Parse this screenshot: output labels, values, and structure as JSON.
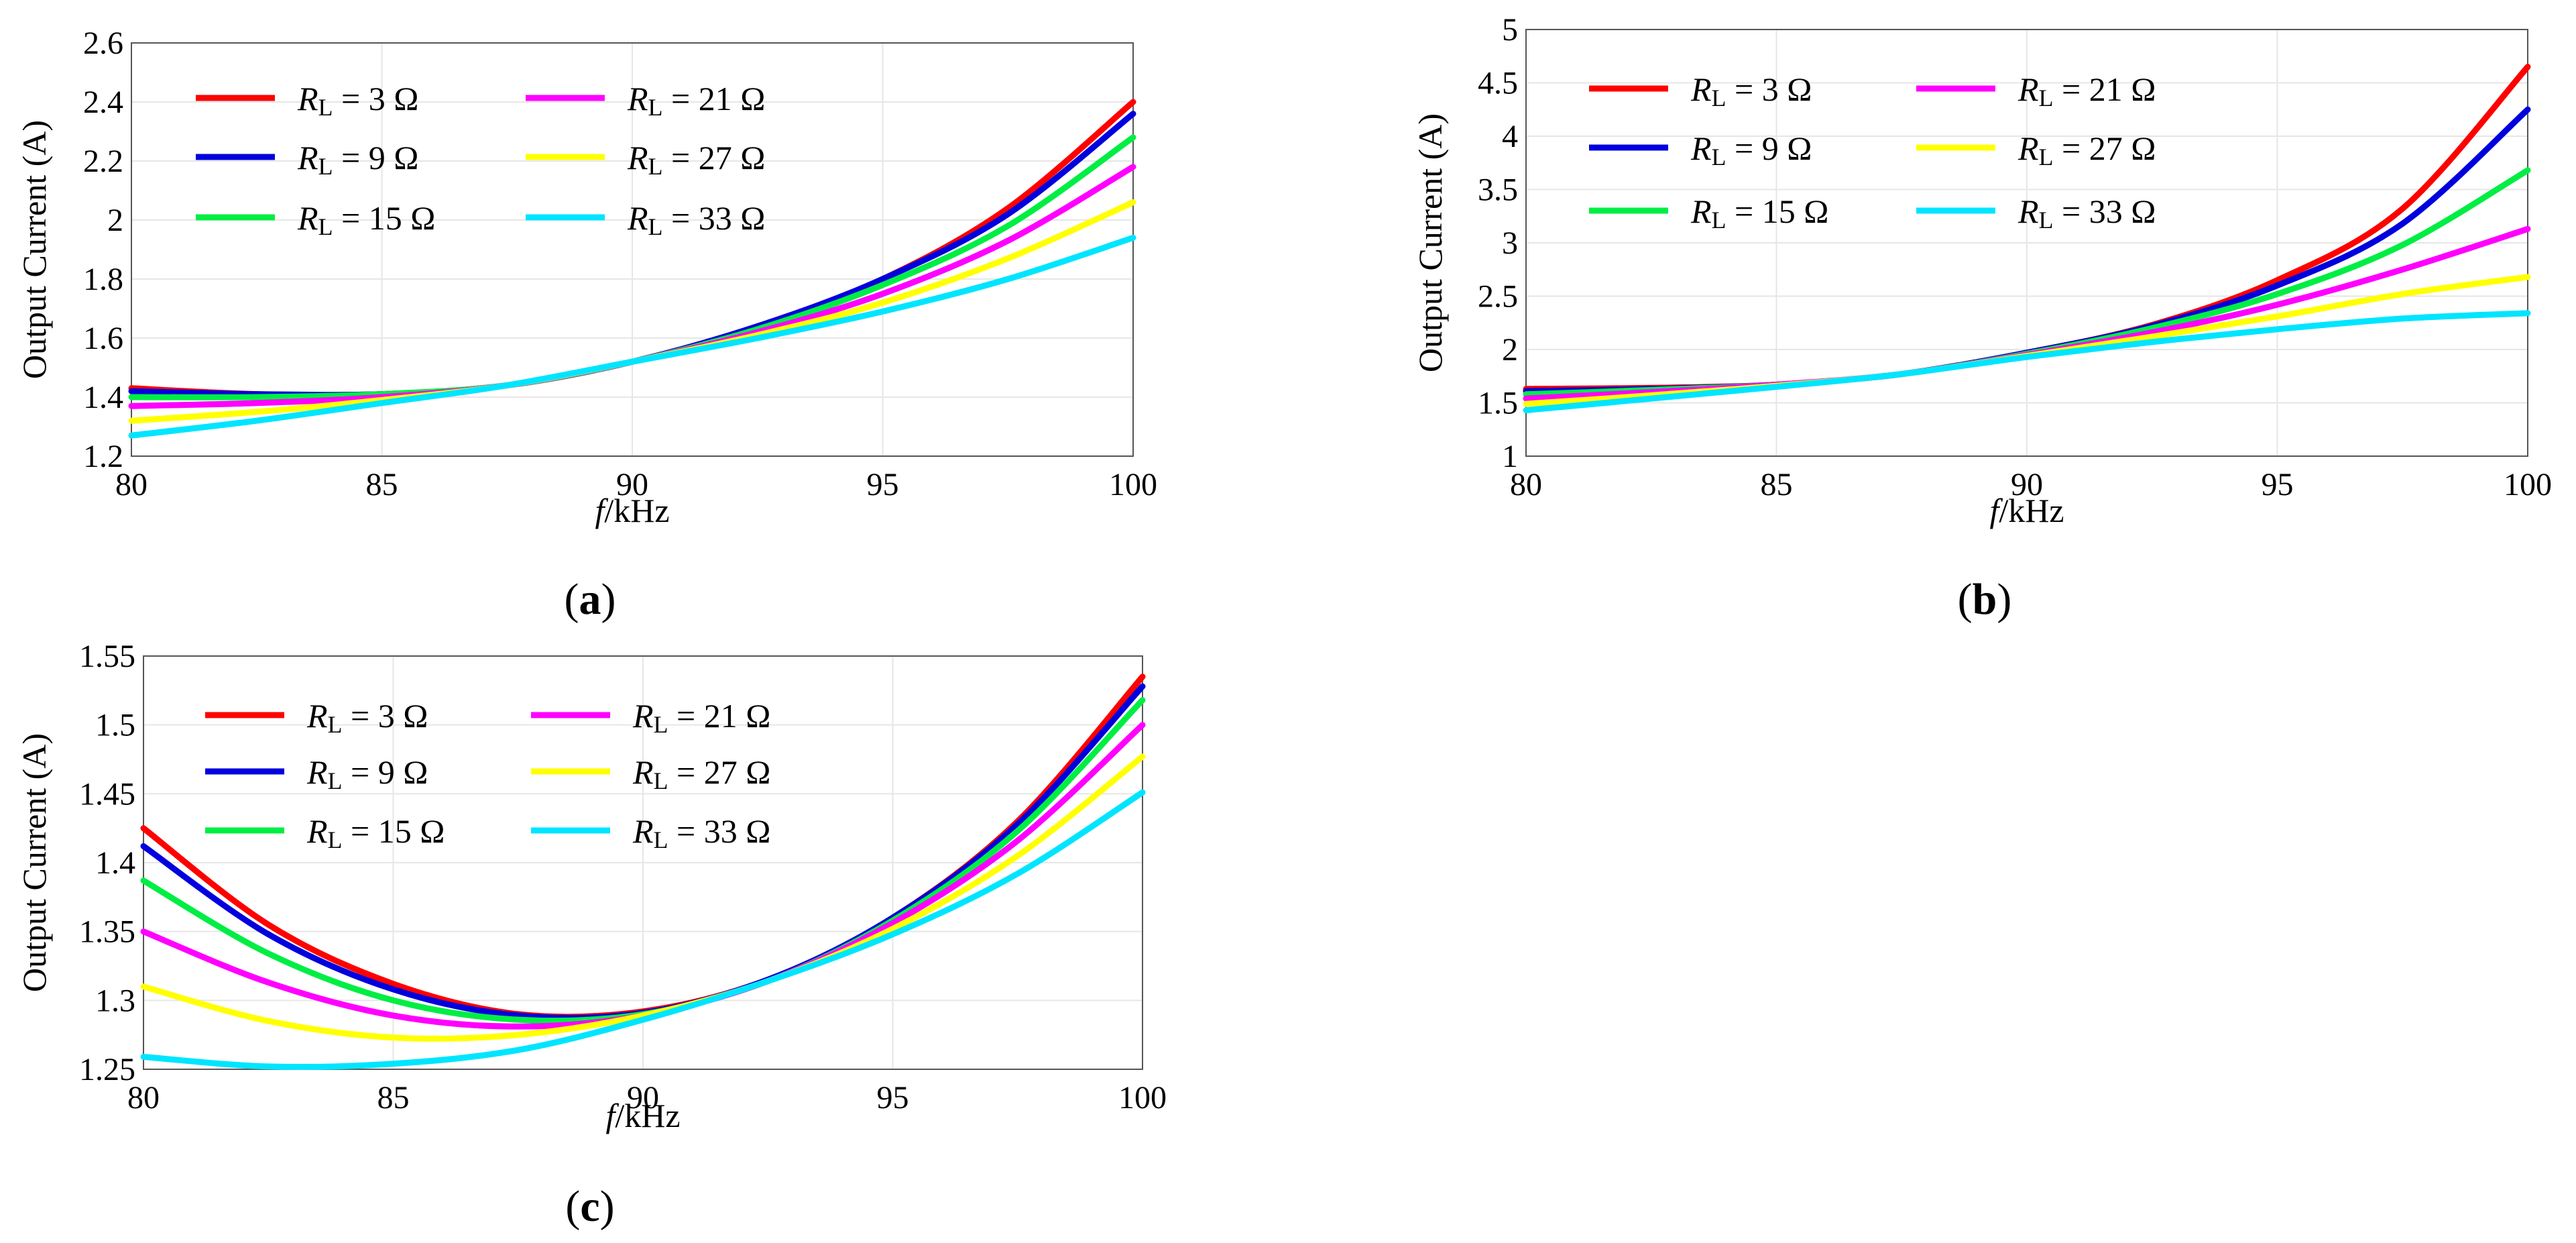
{
  "chart_data": [
    {
      "type": "line",
      "panel_label": "a",
      "xlabel_prefix": "f",
      "xlabel_suffix": "/kHz",
      "ylabel": "Output Current (A)",
      "xlim": [
        80,
        100
      ],
      "ylim": [
        1.2,
        2.6
      ],
      "xticks": [
        "80",
        "85",
        "90",
        "95",
        "100"
      ],
      "yticks": [
        "1.2",
        "1.4",
        "1.6",
        "1.8",
        "2",
        "2.2",
        "2.4",
        "2.6"
      ],
      "x": [
        80,
        82.5,
        85,
        87.5,
        90,
        92.5,
        95,
        97.5,
        100
      ],
      "series": [
        {
          "name_var": "R",
          "name_sub": "L",
          "name_val": " = 3 Ω",
          "color": "#ff0000",
          "values": [
            1.43,
            1.41,
            1.41,
            1.44,
            1.52,
            1.64,
            1.8,
            2.04,
            2.4
          ]
        },
        {
          "name_var": "R",
          "name_sub": "L",
          "name_val": " = 9 Ω",
          "color": "#0000dd",
          "values": [
            1.42,
            1.41,
            1.41,
            1.44,
            1.52,
            1.64,
            1.8,
            2.02,
            2.36
          ]
        },
        {
          "name_var": "R",
          "name_sub": "L",
          "name_val": " = 15 Ω",
          "color": "#00ee44",
          "values": [
            1.4,
            1.4,
            1.41,
            1.44,
            1.52,
            1.63,
            1.78,
            1.98,
            2.28
          ]
        },
        {
          "name_var": "R",
          "name_sub": "L",
          "name_val": " = 21 Ω",
          "color": "#ff00ff",
          "values": [
            1.37,
            1.38,
            1.4,
            1.44,
            1.52,
            1.62,
            1.75,
            1.93,
            2.18
          ]
        },
        {
          "name_var": "R",
          "name_sub": "L",
          "name_val": " = 27 Ω",
          "color": "#ffff00",
          "values": [
            1.32,
            1.35,
            1.39,
            1.44,
            1.52,
            1.61,
            1.72,
            1.87,
            2.06
          ]
        },
        {
          "name_var": "R",
          "name_sub": "L",
          "name_val": " = 33 Ω",
          "color": "#00e5ff",
          "values": [
            1.27,
            1.32,
            1.38,
            1.44,
            1.52,
            1.6,
            1.69,
            1.8,
            1.94
          ]
        }
      ]
    },
    {
      "type": "line",
      "panel_label": "b",
      "xlabel_prefix": "f",
      "xlabel_suffix": "/kHz",
      "ylabel": "Output Current (A)",
      "xlim": [
        80,
        100
      ],
      "ylim": [
        1,
        5
      ],
      "xticks": [
        "80",
        "85",
        "90",
        "95",
        "100"
      ],
      "yticks": [
        "1",
        "1.5",
        "2",
        "2.5",
        "3",
        "3.5",
        "4",
        "4.5",
        "5"
      ],
      "x": [
        80,
        82.5,
        85,
        87.5,
        90,
        92.5,
        95,
        97.5,
        100
      ],
      "series": [
        {
          "name_var": "R",
          "name_sub": "L",
          "name_val": " = 3 Ω",
          "color": "#ff0000",
          "values": [
            1.63,
            1.64,
            1.67,
            1.77,
            1.97,
            2.23,
            2.65,
            3.32,
            4.65
          ]
        },
        {
          "name_var": "R",
          "name_sub": "L",
          "name_val": " = 9 Ω",
          "color": "#0000dd",
          "values": [
            1.61,
            1.63,
            1.67,
            1.77,
            1.97,
            2.22,
            2.6,
            3.18,
            4.25
          ]
        },
        {
          "name_var": "R",
          "name_sub": "L",
          "name_val": " = 15 Ω",
          "color": "#00ee44",
          "values": [
            1.58,
            1.62,
            1.67,
            1.77,
            1.96,
            2.2,
            2.52,
            2.98,
            3.68
          ]
        },
        {
          "name_var": "R",
          "name_sub": "L",
          "name_val": " = 21 Ω",
          "color": "#ff00ff",
          "values": [
            1.54,
            1.6,
            1.67,
            1.77,
            1.95,
            2.16,
            2.42,
            2.75,
            3.13
          ]
        },
        {
          "name_var": "R",
          "name_sub": "L",
          "name_val": " = 27 Ω",
          "color": "#ffff00",
          "values": [
            1.49,
            1.57,
            1.66,
            1.77,
            1.94,
            2.12,
            2.31,
            2.52,
            2.68
          ]
        },
        {
          "name_var": "R",
          "name_sub": "L",
          "name_val": " = 33 Ω",
          "color": "#00e5ff",
          "values": [
            1.43,
            1.54,
            1.65,
            1.77,
            1.93,
            2.07,
            2.19,
            2.29,
            2.34
          ]
        }
      ]
    },
    {
      "type": "line",
      "panel_label": "c",
      "xlabel_prefix": "f",
      "xlabel_suffix": "/kHz",
      "ylabel": "Output Current (A)",
      "xlim": [
        80,
        100
      ],
      "ylim": [
        1.25,
        1.55
      ],
      "xticks": [
        "80",
        "85",
        "90",
        "95",
        "100"
      ],
      "yticks": [
        "1.25",
        "1.3",
        "1.35",
        "1.4",
        "1.45",
        "1.5",
        "1.55"
      ],
      "x": [
        80,
        82.5,
        85,
        87.5,
        90,
        92.5,
        95,
        97.5,
        100
      ],
      "series": [
        {
          "name_var": "R",
          "name_sub": "L",
          "name_val": " = 3 Ω",
          "color": "#ff0000",
          "values": [
            1.425,
            1.355,
            1.312,
            1.29,
            1.292,
            1.315,
            1.36,
            1.43,
            1.535
          ]
        },
        {
          "name_var": "R",
          "name_sub": "L",
          "name_val": " = 9 Ω",
          "color": "#0000dd",
          "values": [
            1.412,
            1.348,
            1.308,
            1.289,
            1.291,
            1.315,
            1.36,
            1.428,
            1.528
          ]
        },
        {
          "name_var": "R",
          "name_sub": "L",
          "name_val": " = 15 Ω",
          "color": "#00ee44",
          "values": [
            1.387,
            1.334,
            1.3,
            1.286,
            1.29,
            1.314,
            1.358,
            1.423,
            1.518
          ]
        },
        {
          "name_var": "R",
          "name_sub": "L",
          "name_val": " = 21 Ω",
          "color": "#ff00ff",
          "values": [
            1.35,
            1.313,
            1.289,
            1.281,
            1.289,
            1.314,
            1.356,
            1.416,
            1.5
          ]
        },
        {
          "name_var": "R",
          "name_sub": "L",
          "name_val": " = 27 Ω",
          "color": "#ffff00",
          "values": [
            1.31,
            1.285,
            1.273,
            1.275,
            1.289,
            1.314,
            1.352,
            1.405,
            1.477
          ]
        },
        {
          "name_var": "R",
          "name_sub": "L",
          "name_val": " = 33 Ω",
          "color": "#00e5ff",
          "values": [
            1.259,
            1.252,
            1.254,
            1.264,
            1.286,
            1.314,
            1.348,
            1.392,
            1.451
          ]
        }
      ]
    }
  ]
}
